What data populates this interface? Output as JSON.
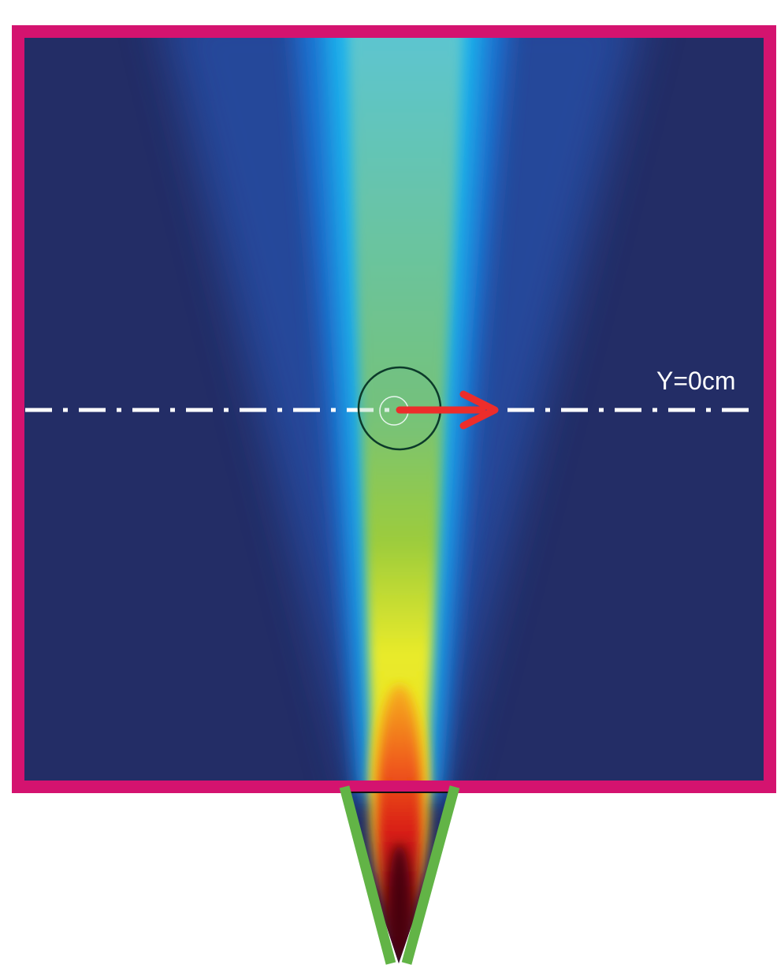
{
  "label": "Y=0cm"
}
